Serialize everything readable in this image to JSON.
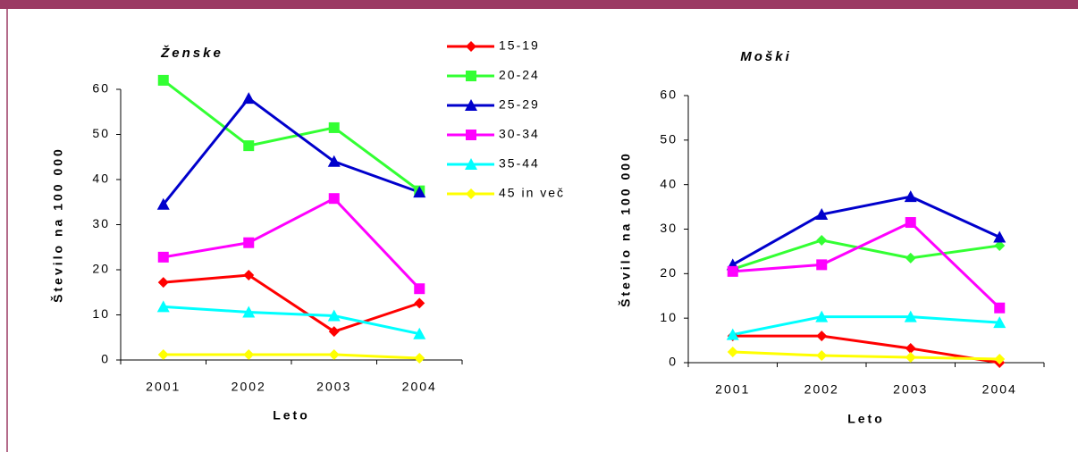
{
  "chart_data": [
    {
      "type": "line",
      "title": "Ženske",
      "x_label": "Leto",
      "y_label": "Število na 100 000",
      "categories": [
        "2001",
        "2002",
        "2003",
        "2004"
      ],
      "ylim": [
        0,
        60
      ],
      "yticks": [
        0,
        10,
        20,
        30,
        40,
        50,
        60
      ],
      "series": [
        {
          "name": "15-19",
          "color": "#ff0000",
          "marker": "diamond",
          "values": [
            17.2,
            18.8,
            6.3,
            12.6
          ]
        },
        {
          "name": "20-24",
          "color": "#33ff33",
          "marker": "square",
          "values": [
            62,
            47.5,
            51.5,
            37.5
          ]
        },
        {
          "name": "25-29",
          "color": "#0000cc",
          "marker": "triangle",
          "values": [
            34.5,
            58,
            44,
            37.2
          ]
        },
        {
          "name": "30-34",
          "color": "#ff00ff",
          "marker": "square",
          "values": [
            22.8,
            26,
            35.8,
            15.8
          ]
        },
        {
          "name": "35-44",
          "color": "#00ffff",
          "marker": "triangle",
          "values": [
            11.8,
            10.6,
            9.8,
            5.8
          ]
        },
        {
          "name": "45 in več",
          "color": "#ffff00",
          "marker": "diamond",
          "values": [
            1.2,
            1.2,
            1.2,
            0.4
          ]
        }
      ]
    },
    {
      "type": "line",
      "title": "Moški",
      "x_label": "Leto",
      "y_label": "Število na 100 000",
      "categories": [
        "2001",
        "2002",
        "2003",
        "2004"
      ],
      "ylim": [
        0,
        60
      ],
      "yticks": [
        0,
        10,
        20,
        30,
        40,
        50,
        60
      ],
      "series": [
        {
          "color": "#ff0000",
          "marker": "diamond",
          "values": [
            6,
            6,
            3.2,
            0
          ]
        },
        {
          "color": "#33ff33",
          "marker": "diamond",
          "values": [
            21,
            27.5,
            23.5,
            26.3
          ]
        },
        {
          "color": "#0000cc",
          "marker": "triangle",
          "values": [
            22,
            33.3,
            37.3,
            28.2
          ]
        },
        {
          "color": "#ff00ff",
          "marker": "square",
          "values": [
            20.5,
            22,
            31.5,
            12.3
          ]
        },
        {
          "color": "#00ffff",
          "marker": "triangle",
          "values": [
            6.3,
            10.3,
            10.3,
            9
          ]
        },
        {
          "color": "#ffff00",
          "marker": "diamond",
          "values": [
            2.4,
            1.6,
            1.2,
            0.8
          ]
        }
      ]
    }
  ]
}
